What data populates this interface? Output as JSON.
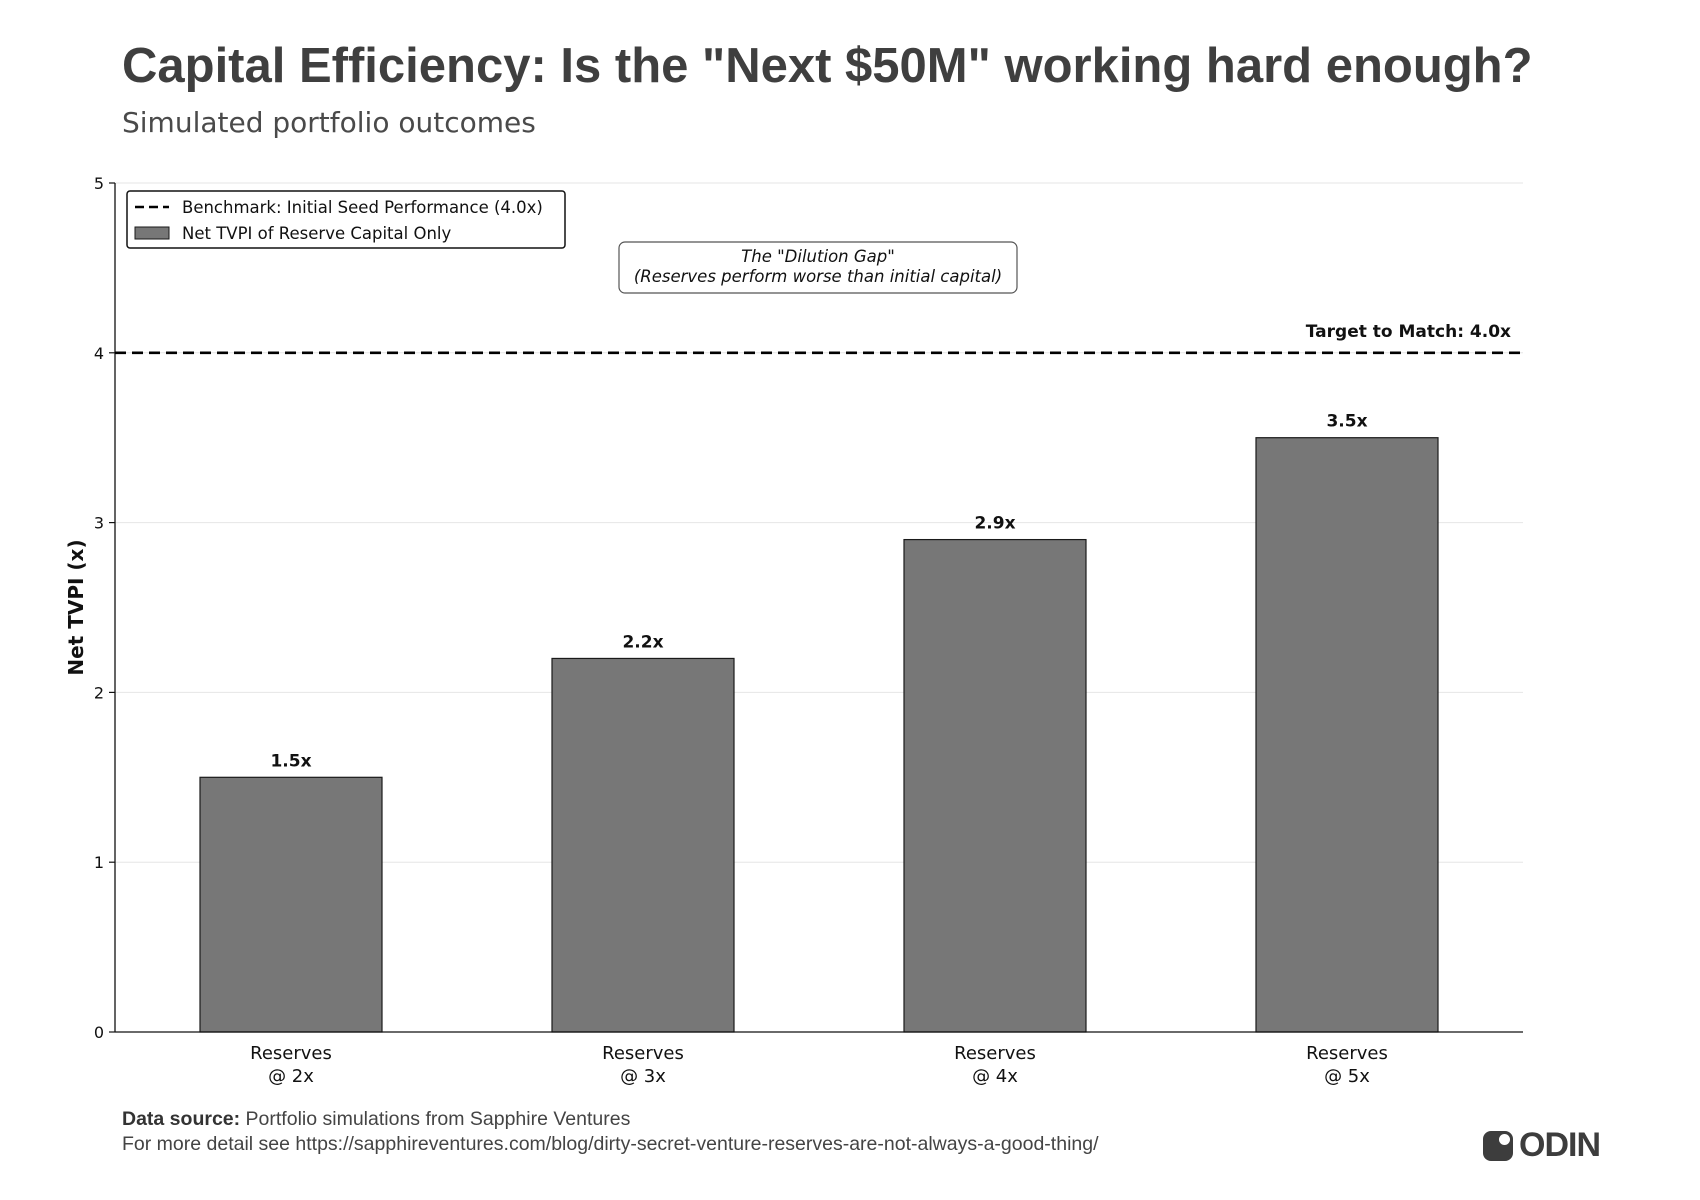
{
  "header": {
    "title": "Capital Efficiency: Is the \"Next $50M\" working hard enough?",
    "subtitle": "Simulated portfolio outcomes"
  },
  "chart_data": {
    "type": "bar",
    "categories": [
      [
        "Reserves",
        "@ 2x"
      ],
      [
        "Reserves",
        "@ 3x"
      ],
      [
        "Reserves",
        "@ 4x"
      ],
      [
        "Reserves",
        "@ 5x"
      ]
    ],
    "values": [
      1.5,
      2.2,
      2.9,
      3.5
    ],
    "value_labels": [
      "1.5x",
      "2.2x",
      "2.9x",
      "3.5x"
    ],
    "ylabel": "Net TVPI (x)",
    "xlabel": "",
    "ylim": [
      0,
      5
    ],
    "yticks": [
      0,
      1,
      2,
      3,
      4,
      5
    ],
    "grid": true,
    "benchmark": {
      "value": 4.0,
      "label": "Target to Match: 4.0x"
    },
    "legend": {
      "placement": "top-left",
      "entries": [
        {
          "type": "dashed-line",
          "label": "Benchmark: Initial Seed Performance (4.0x)"
        },
        {
          "type": "bar",
          "label": "Net TVPI of Reserve Capital Only"
        }
      ]
    },
    "annotation": {
      "lines": [
        "The \"Dilution Gap\"",
        "(Reserves perform worse than initial capital)"
      ]
    },
    "colors": {
      "bar": "#777777",
      "bar_edge": "#1a1a1a",
      "benchmark": "#000000",
      "grid": "#e6e6e6"
    }
  },
  "footer": {
    "source_label": "Data source:",
    "source_text": "Portfolio simulations from Sapphire Ventures",
    "detail_text": "For more detail see https://sapphireventures.com/blog/dirty-secret-venture-reserves-are-not-always-a-good-thing/"
  },
  "logo": {
    "text": "ODIN"
  }
}
